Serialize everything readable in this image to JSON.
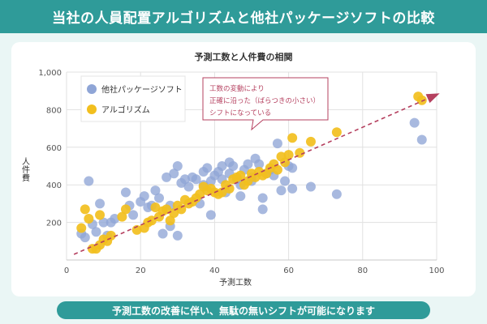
{
  "header": {
    "title": "当社の人員配置アルゴリズムと他社パッケージソフトの比較"
  },
  "footer": {
    "text": "予測工数の改善に伴い、無駄の無いシフトが可能になります"
  },
  "colors": {
    "banner": "#2f9b99",
    "background": "#eaf6f5",
    "competitor": "#8fa5d6",
    "algorithm": "#f2bf1e",
    "trend": "#b5405f"
  },
  "chart_data": {
    "type": "scatter",
    "title": "予測工数と人件費の相関",
    "xlabel": "予測工数",
    "ylabel": "人件費",
    "xlim": [
      0,
      100
    ],
    "ylim": [
      0,
      1000
    ],
    "xticks": [
      "0",
      "20",
      "40",
      "60",
      "80",
      "100"
    ],
    "yticks": [
      "200",
      "400",
      "600",
      "800",
      "1,000"
    ],
    "grid": true,
    "legend_position": "top-left",
    "annotation": {
      "lines": [
        "工数の変動により",
        "正確に沿った（ばらつきの小さい）",
        "シフトになっている"
      ]
    },
    "trendline": {
      "x": [
        2,
        100
      ],
      "y": [
        30,
        880
      ]
    },
    "series": [
      {
        "name": "他社パッケージソフト",
        "color": "#8fa5d6",
        "points": [
          [
            4,
            140
          ],
          [
            5,
            120
          ],
          [
            6,
            420
          ],
          [
            7,
            190
          ],
          [
            8,
            150
          ],
          [
            9,
            300
          ],
          [
            10,
            200
          ],
          [
            11,
            130
          ],
          [
            12,
            200
          ],
          [
            13,
            220
          ],
          [
            16,
            360
          ],
          [
            17,
            290
          ],
          [
            18,
            240
          ],
          [
            20,
            310
          ],
          [
            21,
            340
          ],
          [
            22,
            280
          ],
          [
            23,
            290
          ],
          [
            24,
            370
          ],
          [
            25,
            330
          ],
          [
            26,
            140
          ],
          [
            27,
            440
          ],
          [
            28,
            290
          ],
          [
            28,
            180
          ],
          [
            29,
            460
          ],
          [
            30,
            500
          ],
          [
            30,
            130
          ],
          [
            31,
            410
          ],
          [
            32,
            430
          ],
          [
            33,
            390
          ],
          [
            34,
            440
          ],
          [
            35,
            430
          ],
          [
            36,
            300
          ],
          [
            37,
            400
          ],
          [
            37,
            470
          ],
          [
            38,
            490
          ],
          [
            39,
            420
          ],
          [
            39,
            240
          ],
          [
            40,
            450
          ],
          [
            41,
            470
          ],
          [
            42,
            500
          ],
          [
            42,
            430
          ],
          [
            43,
            360
          ],
          [
            44,
            520
          ],
          [
            44,
            460
          ],
          [
            45,
            500
          ],
          [
            46,
            430
          ],
          [
            47,
            400
          ],
          [
            47,
            340
          ],
          [
            48,
            480
          ],
          [
            49,
            510
          ],
          [
            50,
            440
          ],
          [
            50,
            420
          ],
          [
            51,
            540
          ],
          [
            52,
            510
          ],
          [
            53,
            270
          ],
          [
            53,
            330
          ],
          [
            54,
            460
          ],
          [
            55,
            480
          ],
          [
            56,
            450
          ],
          [
            57,
            620
          ],
          [
            58,
            370
          ],
          [
            59,
            420
          ],
          [
            60,
            500
          ],
          [
            61,
            380
          ],
          [
            61,
            490
          ],
          [
            66,
            390
          ],
          [
            73,
            350
          ],
          [
            94,
            730
          ],
          [
            96,
            640
          ]
        ]
      },
      {
        "name": "アルゴリズム",
        "color": "#f2bf1e",
        "points": [
          [
            4,
            170
          ],
          [
            5,
            270
          ],
          [
            6,
            220
          ],
          [
            7,
            60
          ],
          [
            8,
            60
          ],
          [
            9,
            240
          ],
          [
            9,
            80
          ],
          [
            10,
            110
          ],
          [
            11,
            100
          ],
          [
            12,
            130
          ],
          [
            15,
            230
          ],
          [
            16,
            270
          ],
          [
            19,
            160
          ],
          [
            21,
            170
          ],
          [
            22,
            200
          ],
          [
            23,
            210
          ],
          [
            24,
            280
          ],
          [
            25,
            230
          ],
          [
            26,
            260
          ],
          [
            27,
            270
          ],
          [
            28,
            210
          ],
          [
            29,
            250
          ],
          [
            30,
            290
          ],
          [
            31,
            270
          ],
          [
            32,
            320
          ],
          [
            33,
            300
          ],
          [
            34,
            310
          ],
          [
            35,
            330
          ],
          [
            36,
            350
          ],
          [
            37,
            390
          ],
          [
            38,
            370
          ],
          [
            39,
            380
          ],
          [
            40,
            360
          ],
          [
            41,
            350
          ],
          [
            42,
            360
          ],
          [
            43,
            400
          ],
          [
            44,
            380
          ],
          [
            45,
            430
          ],
          [
            46,
            440
          ],
          [
            47,
            450
          ],
          [
            48,
            400
          ],
          [
            49,
            420
          ],
          [
            50,
            460
          ],
          [
            51,
            440
          ],
          [
            52,
            470
          ],
          [
            53,
            450
          ],
          [
            54,
            460
          ],
          [
            55,
            490
          ],
          [
            56,
            510
          ],
          [
            57,
            480
          ],
          [
            58,
            550
          ],
          [
            59,
            520
          ],
          [
            60,
            560
          ],
          [
            61,
            650
          ],
          [
            63,
            570
          ],
          [
            66,
            630
          ],
          [
            73,
            680
          ],
          [
            95,
            870
          ],
          [
            96,
            850
          ]
        ]
      }
    ]
  }
}
